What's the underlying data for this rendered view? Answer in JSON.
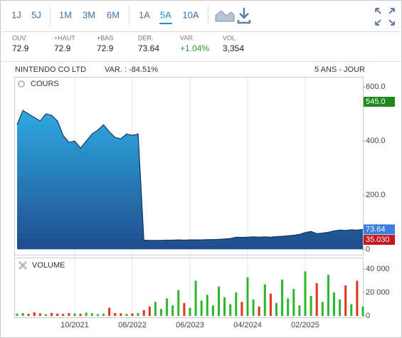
{
  "toolbar": {
    "periods": [
      "1J",
      "5J",
      "1M",
      "3M",
      "6M",
      "1A",
      "5A",
      "10A"
    ]
  },
  "stats": [
    {
      "label": "OUV.",
      "value": "72.9"
    },
    {
      "label": "+HAUT",
      "value": "72.9"
    },
    {
      "label": "+BAS",
      "value": "72.9"
    },
    {
      "label": "DER.",
      "value": "73.64"
    },
    {
      "label": "VAR.",
      "value": "+1.04%"
    },
    {
      "label": "VOL.",
      "value": "3,354"
    }
  ],
  "chart_data": {
    "type": "area",
    "title": "NINTENDO CO LTD",
    "subtitle": "VAR. : -84.51%",
    "period": "5 ANS - JOUR",
    "categories": [
      null,
      null,
      null,
      null,
      null,
      null,
      null,
      null,
      null,
      null,
      "10/2021",
      null,
      null,
      null,
      null,
      null,
      null,
      null,
      null,
      null,
      "08/2022",
      null,
      null,
      null,
      null,
      null,
      null,
      null,
      null,
      null,
      "06/2023",
      null,
      null,
      null,
      null,
      null,
      null,
      null,
      null,
      null,
      "04/2024",
      null,
      null,
      null,
      null,
      null,
      null,
      null,
      null,
      null,
      "02/2025",
      null,
      null,
      null,
      null,
      null,
      null,
      null,
      null,
      null,
      null
    ],
    "series": [
      {
        "name": "COURS",
        "color": "#2a9fd8",
        "values": [
          460,
          513,
          500,
          487,
          474,
          500,
          495,
          474,
          421,
          395,
          400,
          374,
          400,
          426,
          440,
          460,
          434,
          413,
          408,
          426,
          421,
          426,
          34,
          33,
          33,
          33,
          34,
          34,
          35,
          34,
          35,
          35,
          35,
          36,
          36,
          37,
          38,
          40,
          45,
          44,
          45,
          46,
          45,
          46,
          45,
          47,
          48,
          50,
          52,
          55,
          62,
          66,
          58,
          60,
          63,
          68,
          71,
          70,
          72,
          71,
          73.64
        ]
      }
    ],
    "ylim": [
      -20,
      637
    ],
    "yticks": [
      0,
      {
        "value": 200,
        "label": "200.0"
      },
      {
        "value": 400,
        "label": "400.0"
      },
      {
        "value": 600,
        "label": "600.0"
      }
    ],
    "price_labels": [
      {
        "value": 545,
        "label": "545.0",
        "color": "#1e8a1e"
      },
      {
        "value": 73.64,
        "color": "#3b7fe0"
      },
      {
        "value": 35.03,
        "label": "35.030",
        "color": "#c8161d"
      }
    ],
    "volume": {
      "name": "VOLUME",
      "values": [
        2000,
        2500,
        1800,
        3000,
        2200,
        1500,
        2600,
        2000,
        1700,
        2400,
        2100,
        1900,
        2800,
        2300,
        1600,
        2000,
        7000,
        2500,
        2200,
        1800,
        2100,
        2600,
        5000,
        8000,
        12000,
        6000,
        15000,
        9000,
        22000,
        11000,
        7000,
        30000,
        13000,
        18000,
        9000,
        25000,
        16000,
        10000,
        20000,
        12000,
        33000,
        14000,
        8000,
        27000,
        19000,
        11000,
        31000,
        15000,
        23000,
        9000,
        38000,
        17000,
        28000,
        12000,
        35000,
        20000,
        14000,
        26000,
        10000,
        30000,
        8000
      ],
      "ylim": [
        -1200,
        49700
      ],
      "yticks": [
        0,
        {
          "value": 20000,
          "label": "20 000"
        },
        {
          "value": 40000,
          "label": "40 000"
        }
      ],
      "up_color": "#2db82d",
      "down_color": "#e0321e"
    }
  }
}
